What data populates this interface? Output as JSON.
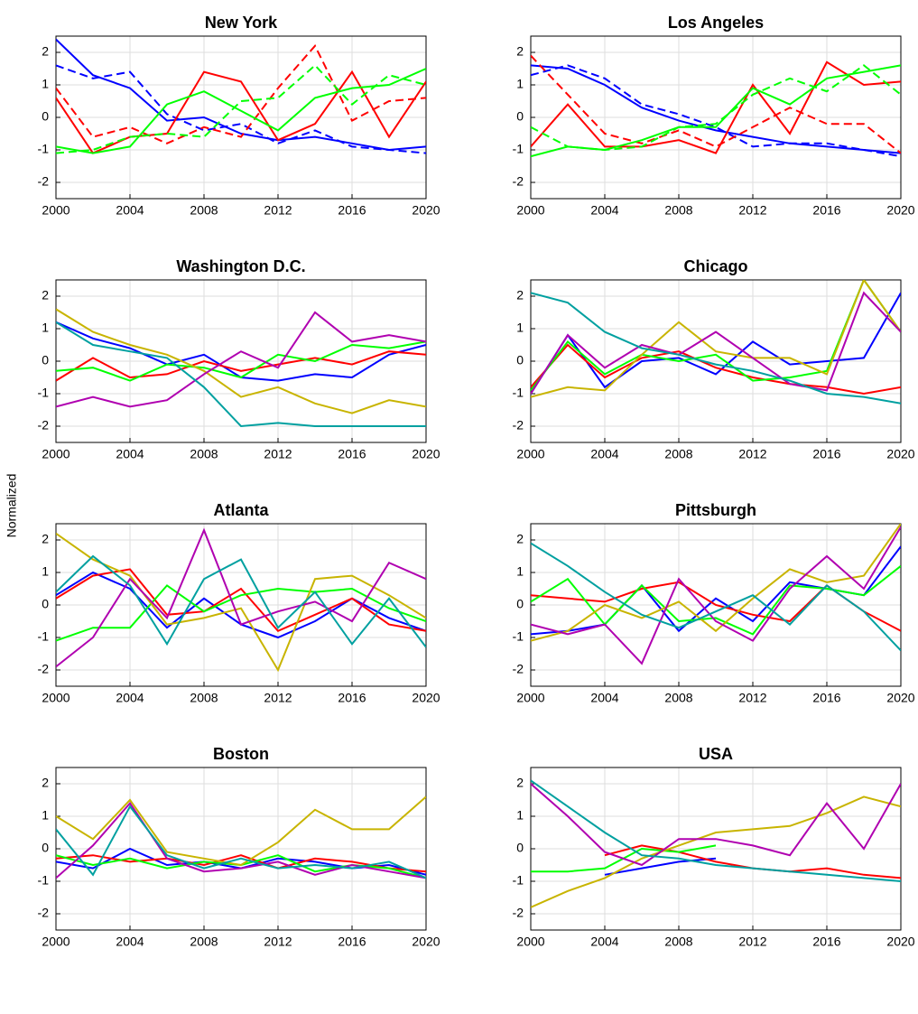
{
  "ylabel": "Normalized",
  "chart_data": [
    {
      "type": "line",
      "title": "New York",
      "x": [
        2000,
        2002,
        2004,
        2006,
        2008,
        2010,
        2012,
        2014,
        2016,
        2018,
        2020
      ],
      "xlim": [
        2000,
        2020
      ],
      "xticks": [
        2000,
        2004,
        2008,
        2012,
        2016,
        2020
      ],
      "ylim": [
        -2.5,
        2.5
      ],
      "yticks": [
        -2,
        -1,
        0,
        1,
        2
      ],
      "grid": true,
      "series": [
        {
          "color": "#0000ff",
          "dashed": false,
          "values": [
            2.4,
            1.3,
            0.9,
            -0.1,
            0.0,
            -0.5,
            -0.7,
            -0.6,
            -0.8,
            -1.0,
            -0.9
          ]
        },
        {
          "color": "#0000ff",
          "dashed": true,
          "values": [
            1.6,
            1.2,
            1.4,
            0.1,
            -0.4,
            -0.2,
            -0.8,
            -0.4,
            -0.9,
            -1.0,
            -1.1
          ]
        },
        {
          "color": "#ff0000",
          "dashed": false,
          "values": [
            0.6,
            -1.1,
            -0.6,
            -0.5,
            1.4,
            1.1,
            -0.7,
            -0.2,
            1.4,
            -0.6,
            1.1
          ]
        },
        {
          "color": "#ff0000",
          "dashed": true,
          "values": [
            0.9,
            -0.6,
            -0.3,
            -0.8,
            -0.3,
            -0.6,
            0.9,
            2.2,
            -0.1,
            0.5,
            0.6
          ]
        },
        {
          "color": "#00ff00",
          "dashed": false,
          "values": [
            -0.9,
            -1.1,
            -0.9,
            0.4,
            0.8,
            0.2,
            -0.4,
            0.6,
            0.9,
            1.0,
            1.5
          ]
        },
        {
          "color": "#00ff00",
          "dashed": true,
          "values": [
            -1.1,
            -1.0,
            -0.6,
            -0.5,
            -0.6,
            0.5,
            0.6,
            1.6,
            0.4,
            1.3,
            1.0
          ]
        }
      ]
    },
    {
      "type": "line",
      "title": "Los Angeles",
      "x": [
        2000,
        2002,
        2004,
        2006,
        2008,
        2010,
        2012,
        2014,
        2016,
        2018,
        2020
      ],
      "xlim": [
        2000,
        2020
      ],
      "xticks": [
        2000,
        2004,
        2008,
        2012,
        2016,
        2020
      ],
      "ylim": [
        -2.5,
        2.5
      ],
      "yticks": [
        -2,
        -1,
        0,
        1,
        2
      ],
      "grid": true,
      "series": [
        {
          "color": "#0000ff",
          "dashed": false,
          "values": [
            1.6,
            1.5,
            1.0,
            0.3,
            -0.1,
            -0.4,
            -0.6,
            -0.8,
            -0.9,
            -1.0,
            -1.1
          ]
        },
        {
          "color": "#0000ff",
          "dashed": true,
          "values": [
            1.3,
            1.6,
            1.2,
            0.4,
            0.1,
            -0.3,
            -0.9,
            -0.8,
            -0.8,
            -1.0,
            -1.2
          ]
        },
        {
          "color": "#ff0000",
          "dashed": false,
          "values": [
            -0.9,
            0.4,
            -0.9,
            -0.9,
            -0.7,
            -1.1,
            1.0,
            -0.5,
            1.7,
            1.0,
            1.1
          ]
        },
        {
          "color": "#ff0000",
          "dashed": true,
          "values": [
            1.9,
            0.7,
            -0.5,
            -0.8,
            -0.4,
            -0.9,
            -0.3,
            0.3,
            -0.2,
            -0.2,
            -1.1
          ]
        },
        {
          "color": "#00ff00",
          "dashed": false,
          "values": [
            -1.2,
            -0.9,
            -1.0,
            -0.7,
            -0.3,
            -0.3,
            0.9,
            0.4,
            1.2,
            1.4,
            1.6
          ]
        },
        {
          "color": "#00ff00",
          "dashed": true,
          "values": [
            -0.3,
            -0.9,
            -1.0,
            -0.9,
            -0.3,
            -0.2,
            0.7,
            1.2,
            0.8,
            1.6,
            0.7
          ]
        }
      ]
    },
    {
      "type": "line",
      "title": "Washington D.C.",
      "x": [
        2000,
        2002,
        2004,
        2006,
        2008,
        2010,
        2012,
        2014,
        2016,
        2018,
        2020
      ],
      "xlim": [
        2000,
        2020
      ],
      "xticks": [
        2000,
        2004,
        2008,
        2012,
        2016,
        2020
      ],
      "ylim": [
        -2.5,
        2.5
      ],
      "yticks": [
        -2,
        -1,
        0,
        1,
        2
      ],
      "grid": true,
      "series": [
        {
          "color": "#0000ff",
          "dashed": false,
          "values": [
            1.2,
            0.7,
            0.4,
            -0.1,
            0.2,
            -0.5,
            -0.6,
            -0.4,
            -0.5,
            0.2,
            0.5
          ]
        },
        {
          "color": "#ff0000",
          "dashed": false,
          "values": [
            -0.6,
            0.1,
            -0.5,
            -0.4,
            0.0,
            -0.3,
            -0.1,
            0.1,
            -0.1,
            0.3,
            0.2
          ]
        },
        {
          "color": "#00ff00",
          "dashed": false,
          "values": [
            -0.3,
            -0.2,
            -0.6,
            -0.1,
            -0.2,
            -0.5,
            0.2,
            0.0,
            0.5,
            0.4,
            0.6
          ]
        },
        {
          "color": "#c8b400",
          "dashed": false,
          "values": [
            1.6,
            0.9,
            0.5,
            0.2,
            -0.3,
            -1.1,
            -0.8,
            -1.3,
            -1.6,
            -1.2,
            -1.4
          ]
        },
        {
          "color": "#b000b0",
          "dashed": false,
          "values": [
            -1.4,
            -1.1,
            -1.4,
            -1.2,
            -0.4,
            0.3,
            -0.2,
            1.5,
            0.6,
            0.8,
            0.6
          ]
        },
        {
          "color": "#00a0a0",
          "dashed": false,
          "values": [
            1.2,
            0.5,
            0.3,
            0.1,
            -0.8,
            -2.0,
            -1.9,
            -2.0,
            -2.0,
            -2.0,
            -2.0
          ]
        }
      ]
    },
    {
      "type": "line",
      "title": "Chicago",
      "x": [
        2000,
        2002,
        2004,
        2006,
        2008,
        2010,
        2012,
        2014,
        2016,
        2018,
        2020
      ],
      "xlim": [
        2000,
        2020
      ],
      "xticks": [
        2000,
        2004,
        2008,
        2012,
        2016,
        2020
      ],
      "ylim": [
        -2.5,
        2.5
      ],
      "yticks": [
        -2,
        -1,
        0,
        1,
        2
      ],
      "grid": true,
      "series": [
        {
          "color": "#0000ff",
          "dashed": false,
          "values": [
            -1.0,
            0.8,
            -0.8,
            0.0,
            0.1,
            -0.4,
            0.6,
            -0.1,
            0.0,
            0.1,
            2.1
          ]
        },
        {
          "color": "#ff0000",
          "dashed": false,
          "values": [
            -0.8,
            0.5,
            -0.5,
            0.1,
            0.3,
            -0.2,
            -0.5,
            -0.7,
            -0.8,
            -1.0,
            -0.8
          ]
        },
        {
          "color": "#00ff00",
          "dashed": false,
          "values": [
            -0.9,
            0.6,
            -0.4,
            0.2,
            0.0,
            0.2,
            -0.6,
            -0.5,
            -0.3,
            2.5,
            0.9
          ]
        },
        {
          "color": "#c8b400",
          "dashed": false,
          "values": [
            -1.1,
            -0.8,
            -0.9,
            0.2,
            1.2,
            0.3,
            0.1,
            0.1,
            -0.4,
            2.5,
            0.9
          ]
        },
        {
          "color": "#b000b0",
          "dashed": false,
          "values": [
            -1.0,
            0.8,
            -0.2,
            0.5,
            0.2,
            0.9,
            0.1,
            -0.7,
            -0.9,
            2.1,
            0.9
          ]
        },
        {
          "color": "#00a0a0",
          "dashed": false,
          "values": [
            2.1,
            1.8,
            0.9,
            0.4,
            0.2,
            -0.1,
            -0.3,
            -0.6,
            -1.0,
            -1.1,
            -1.3
          ]
        }
      ]
    },
    {
      "type": "line",
      "title": "Atlanta",
      "x": [
        2000,
        2002,
        2004,
        2006,
        2008,
        2010,
        2012,
        2014,
        2016,
        2018,
        2020
      ],
      "xlim": [
        2000,
        2020
      ],
      "xticks": [
        2000,
        2004,
        2008,
        2012,
        2016,
        2020
      ],
      "ylim": [
        -2.5,
        2.5
      ],
      "yticks": [
        -2,
        -1,
        0,
        1,
        2
      ],
      "grid": true,
      "series": [
        {
          "color": "#0000ff",
          "dashed": false,
          "values": [
            0.3,
            1.0,
            0.5,
            -0.7,
            0.2,
            -0.6,
            -1.0,
            -0.5,
            0.2,
            -0.4,
            -0.8
          ]
        },
        {
          "color": "#ff0000",
          "dashed": false,
          "values": [
            0.2,
            0.9,
            1.1,
            -0.3,
            -0.2,
            0.5,
            -0.8,
            -0.3,
            0.2,
            -0.6,
            -0.8
          ]
        },
        {
          "color": "#00ff00",
          "dashed": false,
          "values": [
            -1.1,
            -0.7,
            -0.7,
            0.6,
            -0.2,
            0.3,
            0.5,
            0.4,
            0.5,
            -0.1,
            -0.5
          ]
        },
        {
          "color": "#c8b400",
          "dashed": false,
          "values": [
            2.2,
            1.4,
            0.9,
            -0.6,
            -0.4,
            -0.1,
            -2.0,
            0.8,
            0.9,
            0.3,
            -0.4
          ]
        },
        {
          "color": "#b000b0",
          "dashed": false,
          "values": [
            -1.9,
            -1.0,
            0.8,
            -0.4,
            2.3,
            -0.6,
            -0.2,
            0.1,
            -0.5,
            1.3,
            0.8
          ]
        },
        {
          "color": "#00a0a0",
          "dashed": false,
          "values": [
            0.4,
            1.5,
            0.6,
            -1.2,
            0.8,
            1.4,
            -0.7,
            0.4,
            -1.2,
            0.2,
            -1.3
          ]
        }
      ]
    },
    {
      "type": "line",
      "title": "Pittsburgh",
      "x": [
        2000,
        2002,
        2004,
        2006,
        2008,
        2010,
        2012,
        2014,
        2016,
        2018,
        2020
      ],
      "xlim": [
        2000,
        2020
      ],
      "xticks": [
        2000,
        2004,
        2008,
        2012,
        2016,
        2020
      ],
      "ylim": [
        -2.5,
        2.5
      ],
      "yticks": [
        -2,
        -1,
        0,
        1,
        2
      ],
      "grid": true,
      "series": [
        {
          "color": "#0000ff",
          "dashed": false,
          "values": [
            -0.9,
            -0.8,
            -0.6,
            0.6,
            -0.8,
            0.2,
            -0.5,
            0.7,
            0.5,
            0.3,
            1.8
          ]
        },
        {
          "color": "#ff0000",
          "dashed": false,
          "values": [
            0.3,
            0.2,
            0.1,
            0.5,
            0.7,
            0.0,
            -0.3,
            -0.5,
            0.6,
            -0.2,
            -0.8
          ]
        },
        {
          "color": "#00ff00",
          "dashed": false,
          "values": [
            0.1,
            0.8,
            -0.6,
            0.6,
            -0.5,
            -0.4,
            -0.9,
            0.6,
            0.5,
            0.3,
            1.2
          ]
        },
        {
          "color": "#c8b400",
          "dashed": false,
          "values": [
            -1.1,
            -0.8,
            0.0,
            -0.4,
            0.1,
            -0.8,
            0.2,
            1.1,
            0.7,
            0.9,
            2.5
          ]
        },
        {
          "color": "#b000b0",
          "dashed": false,
          "values": [
            -0.6,
            -0.9,
            -0.6,
            -1.8,
            0.8,
            -0.5,
            -1.1,
            0.5,
            1.5,
            0.5,
            2.4
          ]
        },
        {
          "color": "#00a0a0",
          "dashed": false,
          "values": [
            1.9,
            1.2,
            0.4,
            -0.3,
            -0.7,
            -0.2,
            0.3,
            -0.6,
            0.6,
            -0.2,
            -1.4
          ]
        }
      ]
    },
    {
      "type": "line",
      "title": "Boston",
      "x": [
        2000,
        2002,
        2004,
        2006,
        2008,
        2010,
        2012,
        2014,
        2016,
        2018,
        2020
      ],
      "xlim": [
        2000,
        2020
      ],
      "xticks": [
        2000,
        2004,
        2008,
        2012,
        2016,
        2020
      ],
      "ylim": [
        -2.5,
        2.5
      ],
      "yticks": [
        -2,
        -1,
        0,
        1,
        2
      ],
      "grid": true,
      "series": [
        {
          "color": "#0000ff",
          "dashed": false,
          "values": [
            -0.4,
            -0.6,
            0.0,
            -0.5,
            -0.4,
            -0.6,
            -0.3,
            -0.4,
            -0.6,
            -0.5,
            -0.8
          ]
        },
        {
          "color": "#ff0000",
          "dashed": false,
          "values": [
            -0.3,
            -0.2,
            -0.4,
            -0.3,
            -0.5,
            -0.2,
            -0.6,
            -0.3,
            -0.4,
            -0.6,
            -0.7
          ]
        },
        {
          "color": "#00ff00",
          "dashed": false,
          "values": [
            -0.2,
            -0.5,
            -0.3,
            -0.6,
            -0.4,
            -0.5,
            -0.2,
            -0.7,
            -0.5,
            -0.6,
            -0.9
          ]
        },
        {
          "color": "#c8b400",
          "dashed": false,
          "values": [
            1.0,
            0.3,
            1.5,
            -0.1,
            -0.3,
            -0.5,
            0.2,
            1.2,
            0.6,
            0.6,
            1.6
          ]
        },
        {
          "color": "#b000b0",
          "dashed": false,
          "values": [
            -0.9,
            0.1,
            1.4,
            -0.3,
            -0.7,
            -0.6,
            -0.4,
            -0.8,
            -0.5,
            -0.7,
            -0.9
          ]
        },
        {
          "color": "#00a0a0",
          "dashed": false,
          "values": [
            0.6,
            -0.8,
            1.3,
            -0.2,
            -0.6,
            -0.3,
            -0.6,
            -0.5,
            -0.6,
            -0.4,
            -0.9
          ]
        }
      ]
    },
    {
      "type": "line",
      "title": "USA",
      "x": [
        2000,
        2002,
        2004,
        2006,
        2008,
        2010,
        2012,
        2014,
        2016,
        2018,
        2020
      ],
      "xlim": [
        2000,
        2020
      ],
      "xticks": [
        2000,
        2004,
        2008,
        2012,
        2016,
        2020
      ],
      "ylim": [
        -2.5,
        2.5
      ],
      "yticks": [
        -2,
        -1,
        0,
        1,
        2
      ],
      "grid": true,
      "series": [
        {
          "color": "#0000ff",
          "dashed": false,
          "values": [
            null,
            null,
            -0.8,
            -0.6,
            -0.4,
            -0.3,
            null,
            null,
            null,
            null,
            null
          ]
        },
        {
          "color": "#ff0000",
          "dashed": false,
          "values": [
            null,
            null,
            -0.2,
            0.1,
            -0.1,
            -0.4,
            -0.6,
            -0.7,
            -0.6,
            -0.8,
            -0.9
          ]
        },
        {
          "color": "#00ff00",
          "dashed": false,
          "values": [
            -0.7,
            -0.7,
            -0.6,
            0.0,
            -0.1,
            0.1,
            null,
            null,
            null,
            null,
            null
          ]
        },
        {
          "color": "#c8b400",
          "dashed": false,
          "values": [
            -1.8,
            -1.3,
            -0.9,
            -0.3,
            0.1,
            0.5,
            0.6,
            0.7,
            1.1,
            1.6,
            1.3
          ]
        },
        {
          "color": "#b000b0",
          "dashed": false,
          "values": [
            2.0,
            1.0,
            -0.1,
            -0.5,
            0.3,
            0.3,
            0.1,
            -0.2,
            1.4,
            0.0,
            2.0
          ]
        },
        {
          "color": "#00a0a0",
          "dashed": false,
          "values": [
            2.1,
            1.3,
            0.5,
            -0.2,
            -0.3,
            -0.5,
            -0.6,
            -0.7,
            -0.8,
            -0.9,
            -1.0
          ]
        }
      ]
    }
  ]
}
